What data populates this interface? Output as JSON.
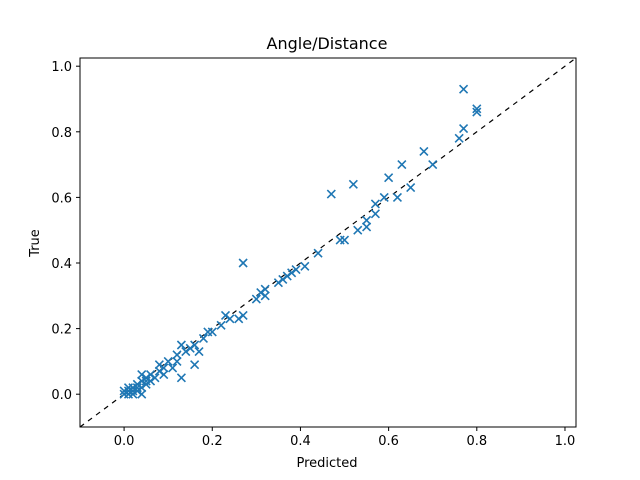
{
  "chart_data": {
    "type": "scatter",
    "title": "Angle/Distance",
    "xlabel": "Predicted",
    "ylabel": "True",
    "xlim": [
      -0.1,
      1.025
    ],
    "ylim": [
      -0.1,
      1.025
    ],
    "xticks": [
      0.0,
      0.2,
      0.4,
      0.6,
      0.8,
      1.0
    ],
    "yticks": [
      0.0,
      0.2,
      0.4,
      0.6,
      0.8,
      1.0
    ],
    "xtick_labels": [
      "0.0",
      "0.2",
      "0.4",
      "0.6",
      "0.8",
      "1.0"
    ],
    "ytick_labels": [
      "0.0",
      "0.2",
      "0.4",
      "0.6",
      "0.8",
      "1.0"
    ],
    "marker": "x",
    "marker_color": "#1f77b4",
    "reference_line": {
      "style": "dashed",
      "color": "#000000",
      "slope": 1,
      "intercept": 0
    },
    "grid": false,
    "points": [
      {
        "x": 0.0,
        "y": 0.01
      },
      {
        "x": 0.0,
        "y": 0.0
      },
      {
        "x": 0.01,
        "y": 0.0
      },
      {
        "x": 0.01,
        "y": 0.01
      },
      {
        "x": 0.01,
        "y": 0.02
      },
      {
        "x": 0.02,
        "y": 0.0
      },
      {
        "x": 0.02,
        "y": 0.01
      },
      {
        "x": 0.02,
        "y": 0.02
      },
      {
        "x": 0.03,
        "y": 0.01
      },
      {
        "x": 0.03,
        "y": 0.02
      },
      {
        "x": 0.03,
        "y": 0.03
      },
      {
        "x": 0.04,
        "y": 0.0
      },
      {
        "x": 0.04,
        "y": 0.02
      },
      {
        "x": 0.04,
        "y": 0.04
      },
      {
        "x": 0.04,
        "y": 0.06
      },
      {
        "x": 0.05,
        "y": 0.03
      },
      {
        "x": 0.05,
        "y": 0.04
      },
      {
        "x": 0.05,
        "y": 0.05
      },
      {
        "x": 0.06,
        "y": 0.04
      },
      {
        "x": 0.06,
        "y": 0.06
      },
      {
        "x": 0.07,
        "y": 0.05
      },
      {
        "x": 0.08,
        "y": 0.07
      },
      {
        "x": 0.08,
        "y": 0.09
      },
      {
        "x": 0.09,
        "y": 0.06
      },
      {
        "x": 0.09,
        "y": 0.08
      },
      {
        "x": 0.1,
        "y": 0.1
      },
      {
        "x": 0.11,
        "y": 0.08
      },
      {
        "x": 0.12,
        "y": 0.1
      },
      {
        "x": 0.12,
        "y": 0.12
      },
      {
        "x": 0.13,
        "y": 0.15
      },
      {
        "x": 0.13,
        "y": 0.05
      },
      {
        "x": 0.14,
        "y": 0.13
      },
      {
        "x": 0.15,
        "y": 0.14
      },
      {
        "x": 0.16,
        "y": 0.15
      },
      {
        "x": 0.16,
        "y": 0.09
      },
      {
        "x": 0.17,
        "y": 0.13
      },
      {
        "x": 0.18,
        "y": 0.17
      },
      {
        "x": 0.19,
        "y": 0.19
      },
      {
        "x": 0.2,
        "y": 0.19
      },
      {
        "x": 0.22,
        "y": 0.21
      },
      {
        "x": 0.23,
        "y": 0.24
      },
      {
        "x": 0.24,
        "y": 0.23
      },
      {
        "x": 0.26,
        "y": 0.23
      },
      {
        "x": 0.27,
        "y": 0.24
      },
      {
        "x": 0.27,
        "y": 0.4
      },
      {
        "x": 0.3,
        "y": 0.29
      },
      {
        "x": 0.31,
        "y": 0.31
      },
      {
        "x": 0.32,
        "y": 0.3
      },
      {
        "x": 0.32,
        "y": 0.32
      },
      {
        "x": 0.35,
        "y": 0.34
      },
      {
        "x": 0.36,
        "y": 0.35
      },
      {
        "x": 0.37,
        "y": 0.36
      },
      {
        "x": 0.38,
        "y": 0.37
      },
      {
        "x": 0.39,
        "y": 0.38
      },
      {
        "x": 0.41,
        "y": 0.39
      },
      {
        "x": 0.44,
        "y": 0.43
      },
      {
        "x": 0.47,
        "y": 0.61
      },
      {
        "x": 0.49,
        "y": 0.47
      },
      {
        "x": 0.5,
        "y": 0.47
      },
      {
        "x": 0.52,
        "y": 0.64
      },
      {
        "x": 0.53,
        "y": 0.5
      },
      {
        "x": 0.55,
        "y": 0.51
      },
      {
        "x": 0.55,
        "y": 0.53
      },
      {
        "x": 0.57,
        "y": 0.55
      },
      {
        "x": 0.57,
        "y": 0.58
      },
      {
        "x": 0.59,
        "y": 0.6
      },
      {
        "x": 0.6,
        "y": 0.66
      },
      {
        "x": 0.62,
        "y": 0.6
      },
      {
        "x": 0.63,
        "y": 0.7
      },
      {
        "x": 0.65,
        "y": 0.63
      },
      {
        "x": 0.68,
        "y": 0.74
      },
      {
        "x": 0.7,
        "y": 0.7
      },
      {
        "x": 0.76,
        "y": 0.78
      },
      {
        "x": 0.77,
        "y": 0.81
      },
      {
        "x": 0.77,
        "y": 0.93
      },
      {
        "x": 0.8,
        "y": 0.86
      },
      {
        "x": 0.8,
        "y": 0.87
      }
    ]
  }
}
